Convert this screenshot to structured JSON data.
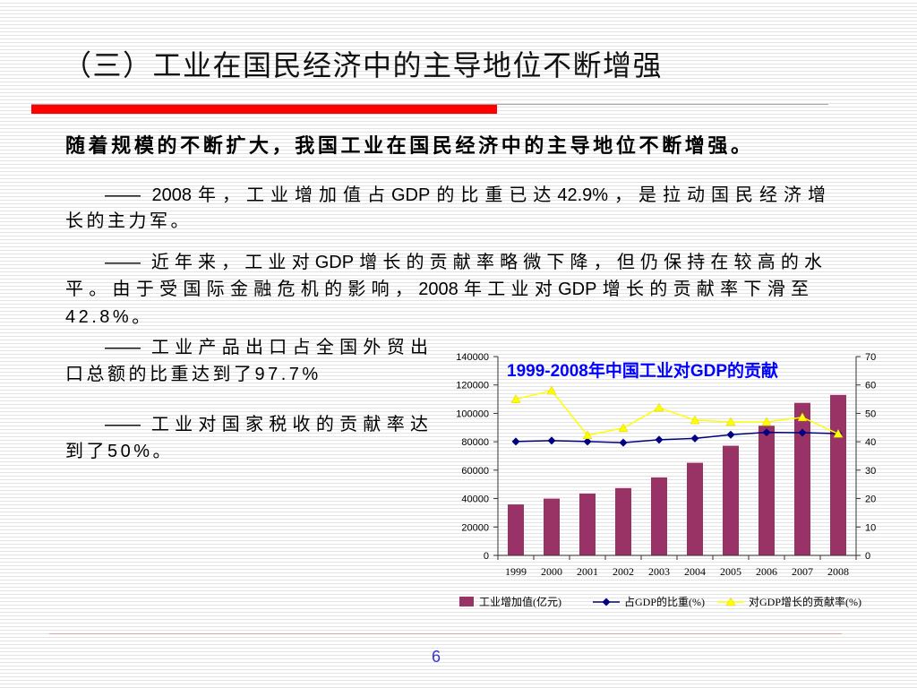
{
  "slide": {
    "title": "（三）工业在国民经济中的主导地位不断增强",
    "lead": "随着规模的不断扩大，我国工业在国民经济中的主导地位不断增强。",
    "paragraphs": [
      {
        "lines": [
          "—— 2008年，工业增加值占GDP的比重已达42.9%，是拉动国民经济增",
          "长的主力军。"
        ]
      },
      {
        "lines": [
          "—— 近年来，工业对GDP增长的贡献率略微下降，但仍保持在较高的水",
          "平。由于受国际金融危机的影响，2008年工业对GDP增长的贡献率下滑至",
          "42.8%。"
        ]
      },
      {
        "lines": [
          "—— 工业产品出口占全国外贸出",
          "口总额的比重达到了97.7%"
        ]
      },
      {
        "lines": [
          "—— 工业对国家税收的贡献率达",
          "到了50%。"
        ]
      }
    ],
    "page_number": "6"
  },
  "colors": {
    "title": "#111111",
    "accent_bar": "#ff0000",
    "divider": "#a6a6a6",
    "footer_line": "#e0a0a0",
    "page_number": "#3333cc",
    "chart_title": "#0000ff"
  },
  "chart_data": {
    "type": "bar",
    "title": "1999-2008年中国工业对GDP的贡献",
    "xlabel": "",
    "ylabel": "",
    "categories": [
      "1999",
      "2000",
      "2001",
      "2002",
      "2003",
      "2004",
      "2005",
      "2006",
      "2007",
      "2008"
    ],
    "series": [
      {
        "name": "工业增加值(亿元)",
        "type": "bar",
        "axis": "left",
        "color": "#993366",
        "values": [
          35900,
          40000,
          43600,
          47400,
          54900,
          65200,
          77200,
          91300,
          107400,
          113000
        ]
      },
      {
        "name": "占GDP的比重(%)",
        "type": "line",
        "axis": "right",
        "marker": "diamond",
        "color": "#000080",
        "values": [
          40.1,
          40.4,
          40.1,
          39.7,
          40.7,
          41.2,
          42.5,
          43.3,
          43.2,
          42.9
        ]
      },
      {
        "name": "对GDP增长的贡献率(%)",
        "type": "line",
        "axis": "right",
        "marker": "triangle",
        "color": "#ffff00",
        "values": [
          55.0,
          58.0,
          42.3,
          44.8,
          52.0,
          47.6,
          47.0,
          47.0,
          48.6,
          42.8
        ]
      }
    ],
    "y_left": {
      "range": [
        0,
        140000
      ],
      "ticks": [
        "0",
        "20000",
        "40000",
        "60000",
        "80000",
        "100000",
        "120000",
        "140000"
      ]
    },
    "y_right": {
      "range": [
        0,
        70
      ],
      "ticks": [
        "0",
        "10",
        "20",
        "30",
        "40",
        "50",
        "60",
        "70"
      ]
    },
    "grid": false,
    "legend": "bottom"
  }
}
